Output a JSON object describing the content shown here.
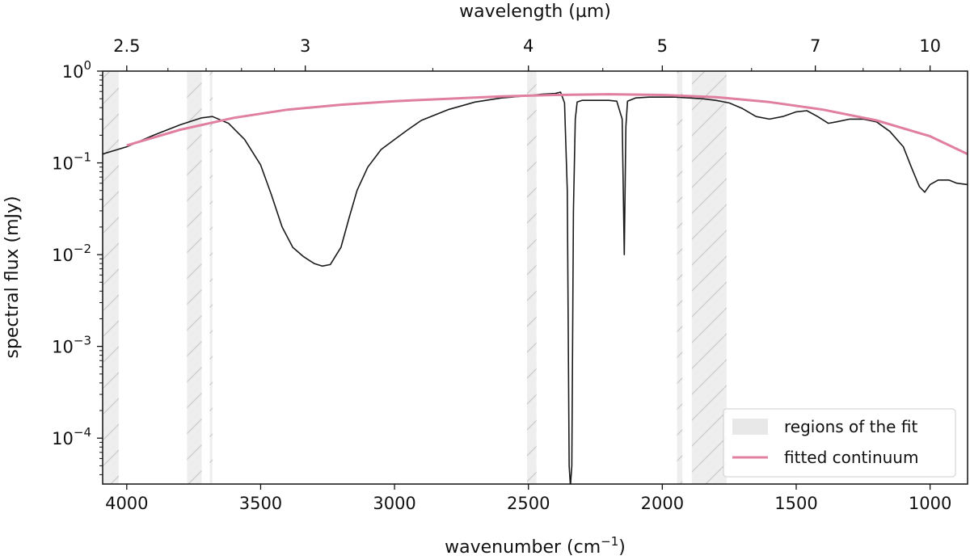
{
  "chart_data": {
    "type": "line",
    "xlabel": "wavenumber (cm",
    "xlabel_sup": "−1",
    "xlabel_suffix": ")",
    "ylabel": "spectral flux (mJy)",
    "top_xlabel": "wavelength (µm)",
    "xlim": [
      4090,
      860
    ],
    "ylim_log10": [
      -4.5,
      0
    ],
    "x_reversed": true,
    "y_scale": "log",
    "x_ticks": [
      {
        "value": 4000,
        "label": "4000"
      },
      {
        "value": 3500,
        "label": "3500"
      },
      {
        "value": 3000,
        "label": "3000"
      },
      {
        "value": 2500,
        "label": "2500"
      },
      {
        "value": 2000,
        "label": "2000"
      },
      {
        "value": 1500,
        "label": "1500"
      },
      {
        "value": 1000,
        "label": "1000"
      }
    ],
    "y_ticks": [
      {
        "exp": 0,
        "base": "10",
        "sup": "0"
      },
      {
        "exp": -1,
        "base": "10",
        "sup": "−1"
      },
      {
        "exp": -2,
        "base": "10",
        "sup": "−2"
      },
      {
        "exp": -3,
        "base": "10",
        "sup": "−3"
      },
      {
        "exp": -4,
        "base": "10",
        "sup": "−4"
      }
    ],
    "top_ticks": [
      {
        "um": 2.5,
        "label": "2.5"
      },
      {
        "um": 3,
        "label": "3"
      },
      {
        "um": 4,
        "label": "4"
      },
      {
        "um": 5,
        "label": "5"
      },
      {
        "um": 7,
        "label": "7"
      },
      {
        "um": 10,
        "label": "10"
      }
    ],
    "fit_regions": [
      {
        "from": 4090,
        "to": 4030
      },
      {
        "from": 3775,
        "to": 3720
      },
      {
        "from": 3690,
        "to": 3680
      },
      {
        "from": 2505,
        "to": 2470
      },
      {
        "from": 1945,
        "to": 1925
      },
      {
        "from": 1890,
        "to": 1760
      }
    ],
    "series": [
      {
        "name": "spectrum",
        "color": "#1a1a1a",
        "points": [
          [
            4090,
            0.125
          ],
          [
            4000,
            0.15
          ],
          [
            3900,
            0.2
          ],
          [
            3800,
            0.26
          ],
          [
            3720,
            0.31
          ],
          [
            3680,
            0.32
          ],
          [
            3620,
            0.27
          ],
          [
            3560,
            0.18
          ],
          [
            3500,
            0.095
          ],
          [
            3460,
            0.045
          ],
          [
            3420,
            0.02
          ],
          [
            3380,
            0.012
          ],
          [
            3340,
            0.0095
          ],
          [
            3300,
            0.008
          ],
          [
            3270,
            0.0075
          ],
          [
            3240,
            0.0078
          ],
          [
            3200,
            0.012
          ],
          [
            3170,
            0.025
          ],
          [
            3140,
            0.05
          ],
          [
            3100,
            0.09
          ],
          [
            3050,
            0.14
          ],
          [
            3000,
            0.18
          ],
          [
            2950,
            0.23
          ],
          [
            2900,
            0.29
          ],
          [
            2800,
            0.38
          ],
          [
            2700,
            0.46
          ],
          [
            2600,
            0.51
          ],
          [
            2500,
            0.54
          ],
          [
            2450,
            0.56
          ],
          [
            2400,
            0.57
          ],
          [
            2380,
            0.59
          ],
          [
            2365,
            0.45
          ],
          [
            2355,
            0.05
          ],
          [
            2348,
            5e-05
          ],
          [
            2343,
            3e-05
          ],
          [
            2338,
            5e-05
          ],
          [
            2332,
            0.03
          ],
          [
            2325,
            0.3
          ],
          [
            2318,
            0.46
          ],
          [
            2300,
            0.48
          ],
          [
            2250,
            0.48
          ],
          [
            2200,
            0.48
          ],
          [
            2170,
            0.47
          ],
          [
            2150,
            0.3
          ],
          [
            2142,
            0.01
          ],
          [
            2136,
            0.25
          ],
          [
            2130,
            0.47
          ],
          [
            2100,
            0.51
          ],
          [
            2050,
            0.52
          ],
          [
            2000,
            0.52
          ],
          [
            1950,
            0.52
          ],
          [
            1900,
            0.51
          ],
          [
            1850,
            0.5
          ],
          [
            1800,
            0.48
          ],
          [
            1750,
            0.45
          ],
          [
            1700,
            0.39
          ],
          [
            1650,
            0.32
          ],
          [
            1600,
            0.3
          ],
          [
            1550,
            0.32
          ],
          [
            1500,
            0.36
          ],
          [
            1460,
            0.37
          ],
          [
            1420,
            0.32
          ],
          [
            1380,
            0.27
          ],
          [
            1350,
            0.28
          ],
          [
            1300,
            0.3
          ],
          [
            1250,
            0.3
          ],
          [
            1200,
            0.28
          ],
          [
            1150,
            0.22
          ],
          [
            1100,
            0.15
          ],
          [
            1070,
            0.09
          ],
          [
            1040,
            0.055
          ],
          [
            1020,
            0.048
          ],
          [
            1000,
            0.058
          ],
          [
            970,
            0.065
          ],
          [
            930,
            0.065
          ],
          [
            900,
            0.06
          ],
          [
            860,
            0.058
          ]
        ]
      },
      {
        "name": "fitted continuum",
        "color": "#e07fa0",
        "points": [
          [
            4000,
            0.155
          ],
          [
            3800,
            0.23
          ],
          [
            3600,
            0.31
          ],
          [
            3400,
            0.38
          ],
          [
            3200,
            0.43
          ],
          [
            3000,
            0.47
          ],
          [
            2800,
            0.5
          ],
          [
            2600,
            0.53
          ],
          [
            2400,
            0.55
          ],
          [
            2200,
            0.56
          ],
          [
            2000,
            0.55
          ],
          [
            1800,
            0.52
          ],
          [
            1600,
            0.46
          ],
          [
            1400,
            0.38
          ],
          [
            1200,
            0.29
          ],
          [
            1000,
            0.195
          ],
          [
            860,
            0.125
          ]
        ]
      }
    ],
    "legend": {
      "position": "lower-right",
      "items": [
        {
          "label": "regions of the fit",
          "kind": "patch",
          "color": "#e8e8e8"
        },
        {
          "label": "fitted continuum",
          "kind": "line",
          "color": "#e07fa0"
        }
      ]
    }
  }
}
